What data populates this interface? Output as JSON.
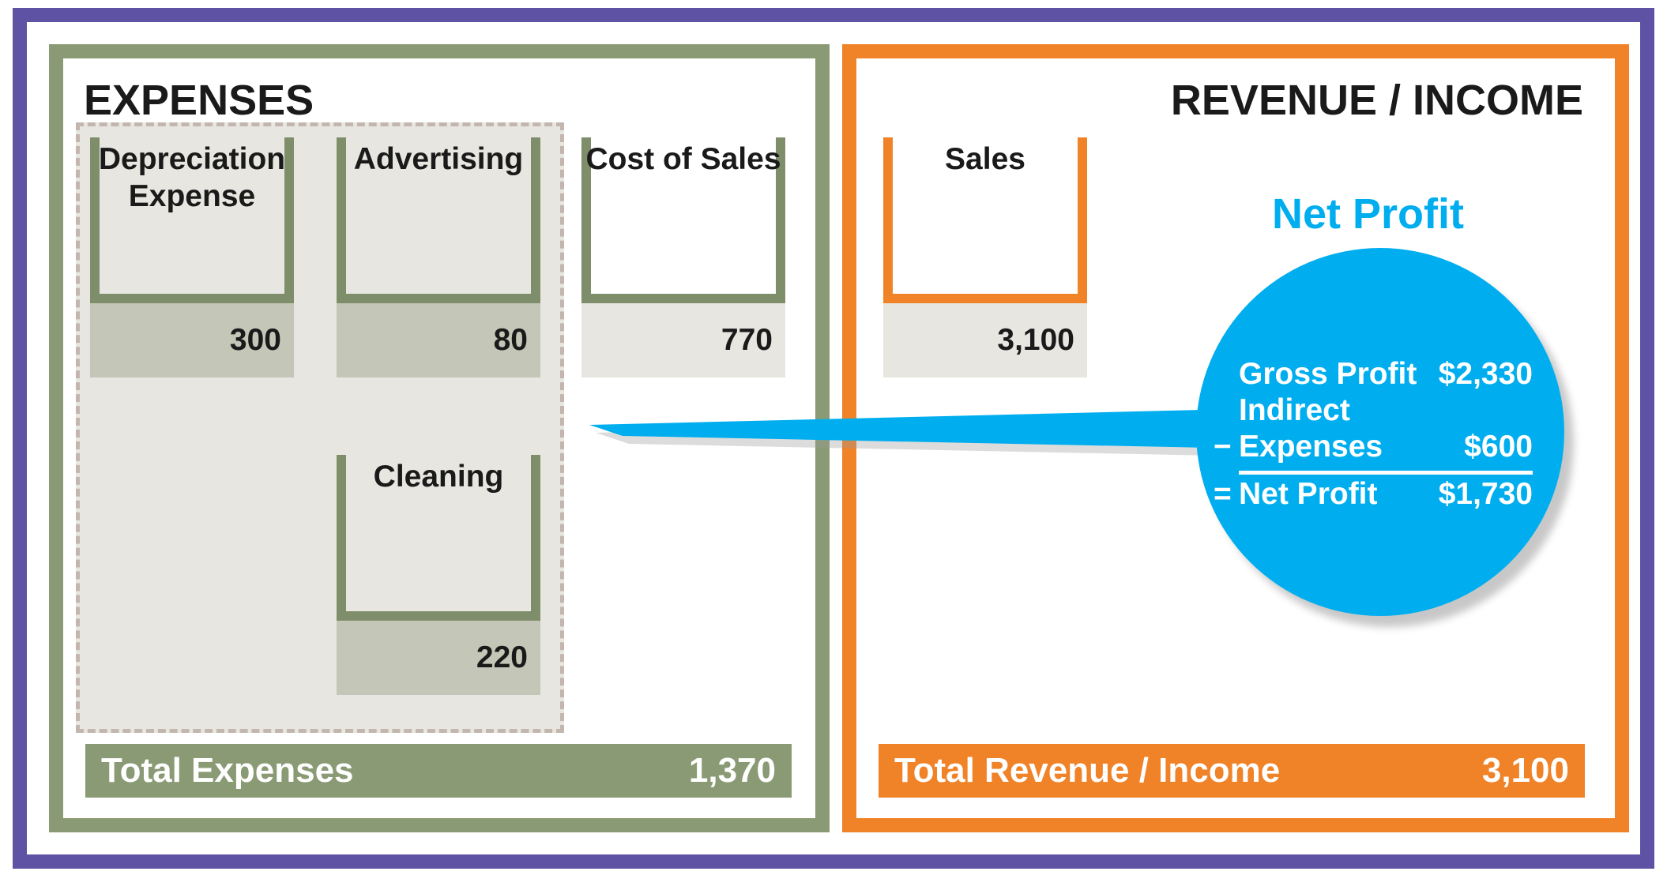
{
  "expenses": {
    "title": "EXPENSES",
    "accounts": [
      {
        "label": "Depreciation\nExpense",
        "value": "300"
      },
      {
        "label": "Advertising",
        "value": "80"
      },
      {
        "label": "Cost of Sales",
        "value": "770"
      },
      {
        "label": "Cleaning",
        "value": "220"
      }
    ],
    "total_label": "Total Expenses",
    "total_value": "1,370"
  },
  "revenue": {
    "title": "REVENUE / INCOME",
    "accounts": [
      {
        "label": "Sales",
        "value": "3,100"
      }
    ],
    "total_label": "Total Revenue / Income",
    "total_value": "3,100"
  },
  "net_profit": {
    "title": "Net Profit",
    "gross_profit_label": "Gross Profit",
    "gross_profit_value": "$2,330",
    "minus_sign": "−",
    "indirect_label_1": "Indirect",
    "indirect_label_2": "Expenses",
    "indirect_value": "$600",
    "equals_sign": "=",
    "net_label": "Net Profit",
    "net_value": "$1,730"
  },
  "colors": {
    "frame": "#5d52a3",
    "expenses": "#8a9a74",
    "revenue": "#f08228",
    "net_profit": "#00aeef",
    "value_cell": "#c4c6b8",
    "shade": "#e8e6e0"
  }
}
